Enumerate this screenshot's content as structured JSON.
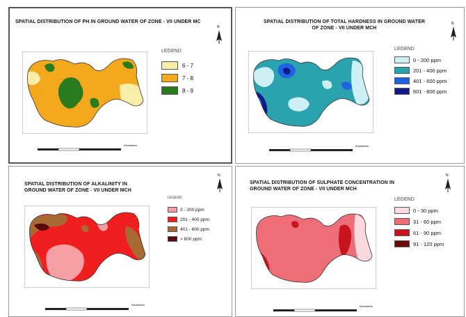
{
  "panels": [
    {
      "id": "ph",
      "title": "SPATIAL DISTRIBUTION OF PH IN GROUND WATER OF ZONE - VII UNDER MC",
      "legend_title": "LEGEND",
      "legend": [
        {
          "label": "6 - 7",
          "color": "#f9eea8"
        },
        {
          "label": "7 - 8",
          "color": "#f4a81e"
        },
        {
          "label": "8 - 9",
          "color": "#2a7a1e"
        }
      ],
      "scale_unit": "Kilometers",
      "scale_ticks": [
        "0",
        "1",
        "2",
        "4"
      ]
    },
    {
      "id": "hardness",
      "title_line1": "SPATIAL DISTRIBUTION OF TOTAL HARDNESS IN GROUND WATER",
      "title_line2": "OF ZONE - VII UNDER MCH",
      "legend_title": "LEGEND",
      "legend": [
        {
          "label": "0 - 200 ppm",
          "color": "#cdf0f5"
        },
        {
          "label": "201 - 400 ppm",
          "color": "#2aa3ae"
        },
        {
          "label": "401 - 600 ppm",
          "color": "#1f63e0"
        },
        {
          "label": "601 - 800 ppm",
          "color": "#101a8a"
        }
      ],
      "scale_unit": "Kilometers",
      "scale_ticks": [
        "0",
        "1",
        "2",
        "4"
      ]
    },
    {
      "id": "alkalinity",
      "title_line1": "SPATIAL DISTRIBUTION OF ALKALINITY IN",
      "title_line2": "GROUND WATER OF ZONE - VII UNDER MCH",
      "legend_title": "LEGEND",
      "legend": [
        {
          "label": "0 - 200 ppm",
          "color": "#f6a0a6"
        },
        {
          "label": "201 - 400 ppm",
          "color": "#f01e1e"
        },
        {
          "label": "401 - 600 ppm",
          "color": "#a86a32"
        },
        {
          "label": "> 600 ppm",
          "color": "#5a0a0a"
        }
      ],
      "scale_unit": "Kilometers",
      "scale_ticks": [
        "0",
        "1",
        "2",
        "4"
      ]
    },
    {
      "id": "sulphate",
      "title_line1": "SPATIAL DISTRIBUTION OF SULPHATE CONCENTRATION IN",
      "title_line2": "GROUND WATER OF ZONE - VII UNDER MCH",
      "legend_title": "LEGEND",
      "legend": [
        {
          "label": "0 - 30 ppm",
          "color": "#fadadd"
        },
        {
          "label": "31 - 60 ppm",
          "color": "#ee6e78"
        },
        {
          "label": "61 - 90 ppm",
          "color": "#c8141e"
        },
        {
          "label": "91 - 120 ppm",
          "color": "#6a0c0c"
        }
      ],
      "scale_unit": "Kilometers",
      "scale_ticks": [
        "0",
        "1",
        "2",
        "4"
      ]
    }
  ],
  "north_label": "N"
}
